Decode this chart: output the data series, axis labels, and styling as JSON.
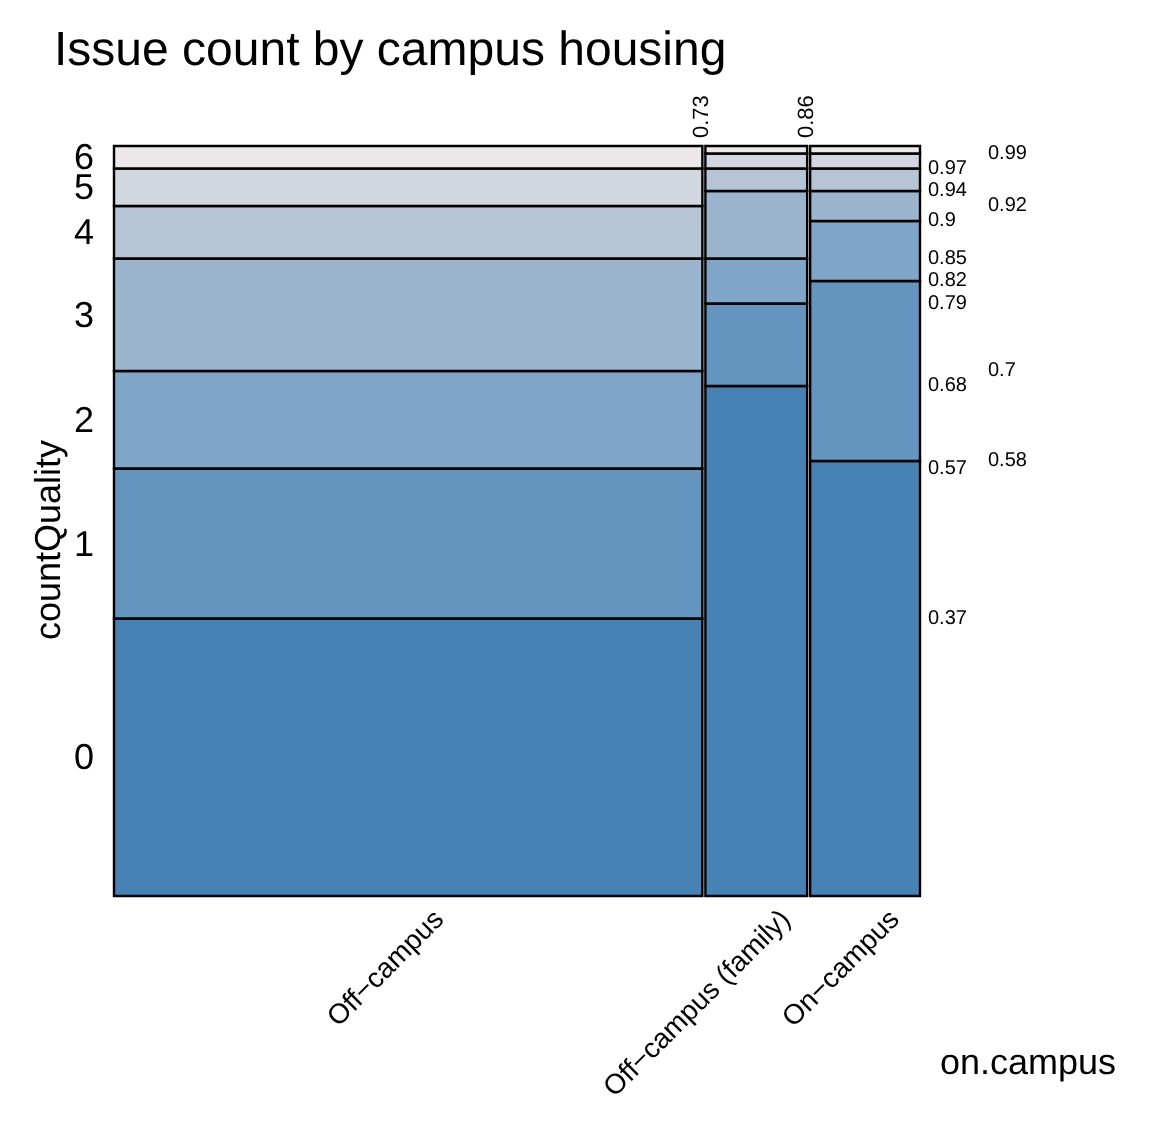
{
  "chart_data": {
    "type": "bar",
    "stacked": true,
    "title": "Issue count by campus housing",
    "xlabel": "on.campus",
    "ylabel": "countQuality",
    "categories": [
      "Off−campus",
      "Off−campus (family)",
      "On−campus"
    ],
    "series": [
      {
        "name": "0",
        "color": "#4682b4",
        "values": [
          0.37,
          0.68,
          0.58
        ]
      },
      {
        "name": "1",
        "color": "#6495bf",
        "values": [
          0.2,
          0.11,
          0.24
        ]
      },
      {
        "name": "2",
        "color": "#7fa5c8",
        "values": [
          0.13,
          0.06,
          0.08
        ]
      },
      {
        "name": "3",
        "color": "#9bb5cf",
        "values": [
          0.15,
          0.09,
          0.04
        ]
      },
      {
        "name": "4",
        "color": "#b6c5d6",
        "values": [
          0.07,
          0.03,
          0.03
        ]
      },
      {
        "name": "5",
        "color": "#d2d6de",
        "values": [
          0.05,
          0.02,
          0.02
        ]
      },
      {
        "name": "6",
        "color": "#ece8e9",
        "values": [
          0.03,
          0.01,
          0.01
        ]
      }
    ],
    "ylim": [
      0,
      1
    ],
    "yticks": [
      0.37,
      0.57,
      0.68,
      0.79,
      0.82,
      0.85,
      0.9,
      0.94,
      0.97
    ],
    "y2lim": [
      0,
      1
    ],
    "y2ticks": [
      0.58,
      0.7,
      0.92,
      0.99
    ],
    "x2lim": [
      0,
      1
    ],
    "x2ticks": [
      0.73,
      0.86
    ],
    "grid": false,
    "legend": false
  }
}
